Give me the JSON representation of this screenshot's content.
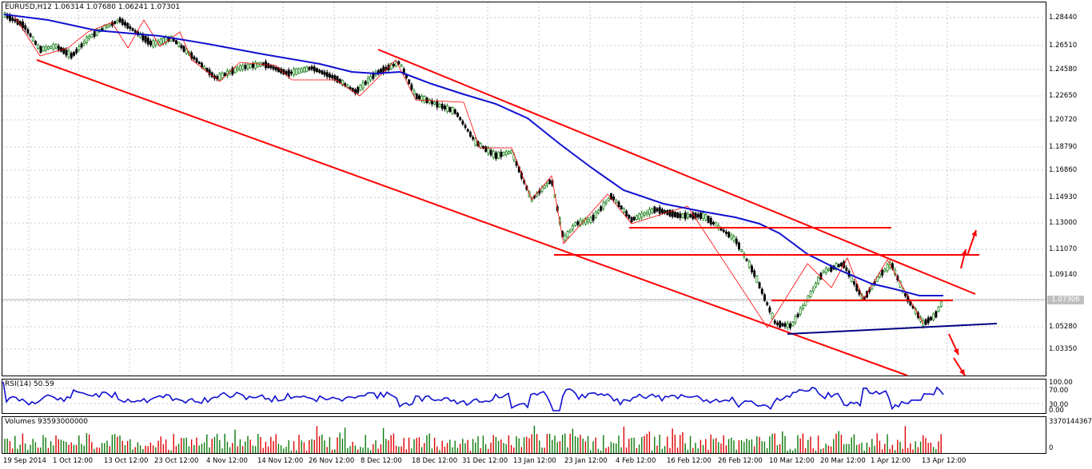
{
  "main_chart": {
    "header": "EURUSD,H12  1.06314 1.07680 1.06241 1.07301",
    "current_price": "1.07306",
    "price_ticks": [
      "1.28440",
      "1.26510",
      "1.24580",
      "1.22650",
      "1.20720",
      "1.18790",
      "1.16860",
      "1.14930",
      "1.13000",
      "1.11070",
      "1.09140",
      "1.05280",
      "1.03350"
    ],
    "colors": {
      "bull": "#0a7a0a",
      "bear": "#000000",
      "moving_average": "#1010d0",
      "trendline": "#ff0000",
      "support": "#000080",
      "zigzag": "#ff0000",
      "grid": "#c8c8d8"
    }
  },
  "rsi_panel": {
    "header": "RSI(14) 50.59",
    "ticks": [
      "100.00",
      "70.00",
      "30.00",
      "0.00"
    ]
  },
  "volume_panel": {
    "header": "Volumes 93593000000",
    "ticks": [
      "3370144367",
      "0"
    ]
  },
  "time_axis": [
    "19 Sep 2014",
    "1 Oct 12:00",
    "13 Oct 12:00",
    "23 Oct 12:00",
    "4 Nov 12:00",
    "14 Nov 12:00",
    "26 Nov 12:00",
    "8 Dec 12:00",
    "18 Dec 12:00",
    "31 Dec 12:00",
    "13 Jan 12:00",
    "23 Jan 12:00",
    "4 Feb 12:00",
    "16 Feb 12:00",
    "26 Feb 12:00",
    "10 Mar 12:00",
    "20 Mar 12:00",
    "1 Apr 12:00",
    "13 Apr 12:00"
  ]
}
